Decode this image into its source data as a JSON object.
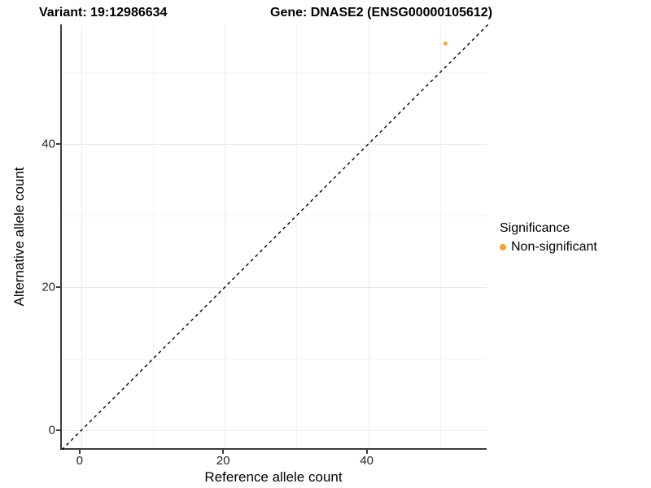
{
  "titles": {
    "variant": "Variant: 19:12986634",
    "gene": "Gene: DNASE2 (ENSG00000105612)"
  },
  "chart_data": {
    "type": "scatter",
    "title": "Variant: 19:12986634   Gene: DNASE2 (ENSG00000105612)",
    "xlabel": "Reference allele count",
    "ylabel": "Alternative allele count",
    "xlim": [
      -2.7,
      56.7
    ],
    "ylim": [
      -2.7,
      56.7
    ],
    "x_major_ticks": [
      0,
      20,
      40
    ],
    "y_major_ticks": [
      0,
      20,
      40
    ],
    "x_minor_ticks": [
      10,
      30,
      50
    ],
    "y_minor_ticks": [
      10,
      30,
      50
    ],
    "grid": "major+minor",
    "points": [
      {
        "x": 51,
        "y": 54,
        "series": "Non-significant"
      }
    ],
    "reference_line": {
      "type": "identity y=x",
      "style": "dashed",
      "color": "#000000"
    },
    "legend": {
      "position": "right",
      "title": "Significance",
      "entries": [
        {
          "label": "Non-significant",
          "color": "#ffa222"
        }
      ]
    },
    "colors": {
      "point": "#fba53c",
      "grid_major": "#e9e9e9",
      "grid_minor": "#f3f3f3",
      "axis_line": "#3c3c3c"
    }
  }
}
